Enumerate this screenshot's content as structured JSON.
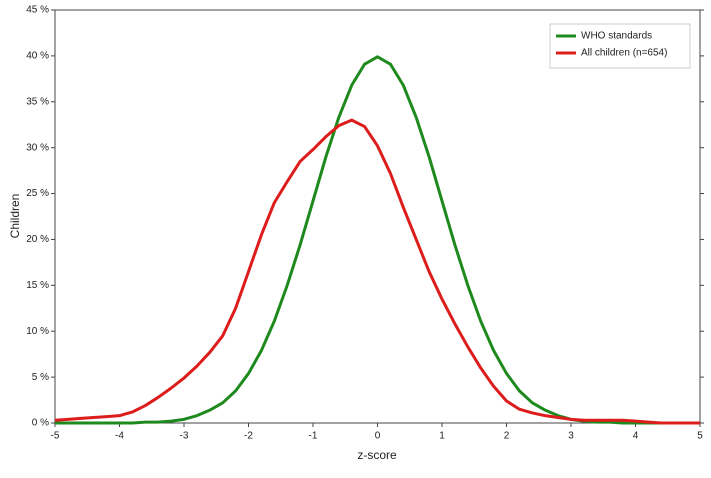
{
  "chart_data": {
    "type": "line",
    "x_label": "z-score",
    "y_label": "Children",
    "x": [
      -5,
      -4.8,
      -4.6,
      -4.4,
      -4.2,
      -4,
      -3.8,
      -3.6,
      -3.4,
      -3.2,
      -3,
      -2.8,
      -2.6,
      -2.4,
      -2.2,
      -2,
      -1.8,
      -1.6,
      -1.4,
      -1.2,
      -1,
      -0.8,
      -0.6,
      -0.4,
      -0.2,
      0,
      0.2,
      0.4,
      0.6,
      0.8,
      1,
      1.2,
      1.4,
      1.6,
      1.8,
      2,
      2.2,
      2.4,
      2.6,
      2.8,
      3,
      3.2,
      3.4,
      3.6,
      3.8,
      4,
      4.2,
      4.4,
      4.6,
      4.8,
      5
    ],
    "series": [
      {
        "name": "WHO standards",
        "color": "#1e8a1e",
        "values": [
          0,
          0,
          0,
          0,
          0,
          0,
          0,
          0.1,
          0.1,
          0.2,
          0.4,
          0.8,
          1.4,
          2.2,
          3.5,
          5.4,
          7.9,
          11.1,
          15.0,
          19.4,
          24.2,
          29.0,
          33.3,
          36.8,
          39.1,
          39.9,
          39.1,
          36.8,
          33.3,
          29.0,
          24.2,
          19.4,
          15.0,
          11.1,
          7.9,
          5.4,
          3.5,
          2.2,
          1.4,
          0.8,
          0.4,
          0.2,
          0.1,
          0.1,
          0,
          0,
          0,
          0,
          0,
          0,
          0
        ]
      },
      {
        "name": "All children (n=654)",
        "color": "#dd1c1c",
        "values": [
          0.3,
          0.4,
          0.5,
          0.6,
          0.7,
          0.8,
          1.2,
          1.9,
          2.8,
          3.8,
          4.9,
          6.2,
          7.7,
          9.5,
          12.5,
          16.5,
          20.5,
          24,
          26.3,
          28.5,
          29.8,
          31.2,
          32.4,
          33,
          32.3,
          30.2,
          27.2,
          23.5,
          20,
          16.5,
          13.5,
          10.8,
          8.3,
          6,
          4,
          2.4,
          1.5,
          1.1,
          0.8,
          0.6,
          0.4,
          0.3,
          0.3,
          0.3,
          0.3,
          0.2,
          0.1,
          0,
          0,
          0,
          0
        ]
      }
    ],
    "xlim": [
      -5,
      5
    ],
    "xticks": [
      -5,
      -4,
      -3,
      -2,
      -1,
      0,
      1,
      2,
      3,
      4,
      5
    ],
    "ylim": [
      0,
      45
    ],
    "yticks": [
      {
        "value": 0,
        "label": "0 %"
      },
      {
        "value": 5,
        "label": "5 %"
      },
      {
        "value": 10,
        "label": "10 %"
      },
      {
        "value": 15,
        "label": "15 %"
      },
      {
        "value": 20,
        "label": "20 %"
      },
      {
        "value": 25,
        "label": "25 %"
      },
      {
        "value": 30,
        "label": "30 %"
      },
      {
        "value": 35,
        "label": "35 %"
      },
      {
        "value": 40,
        "label": "40 %"
      },
      {
        "value": 45,
        "label": "45 %"
      }
    ],
    "legend": "top-right"
  }
}
